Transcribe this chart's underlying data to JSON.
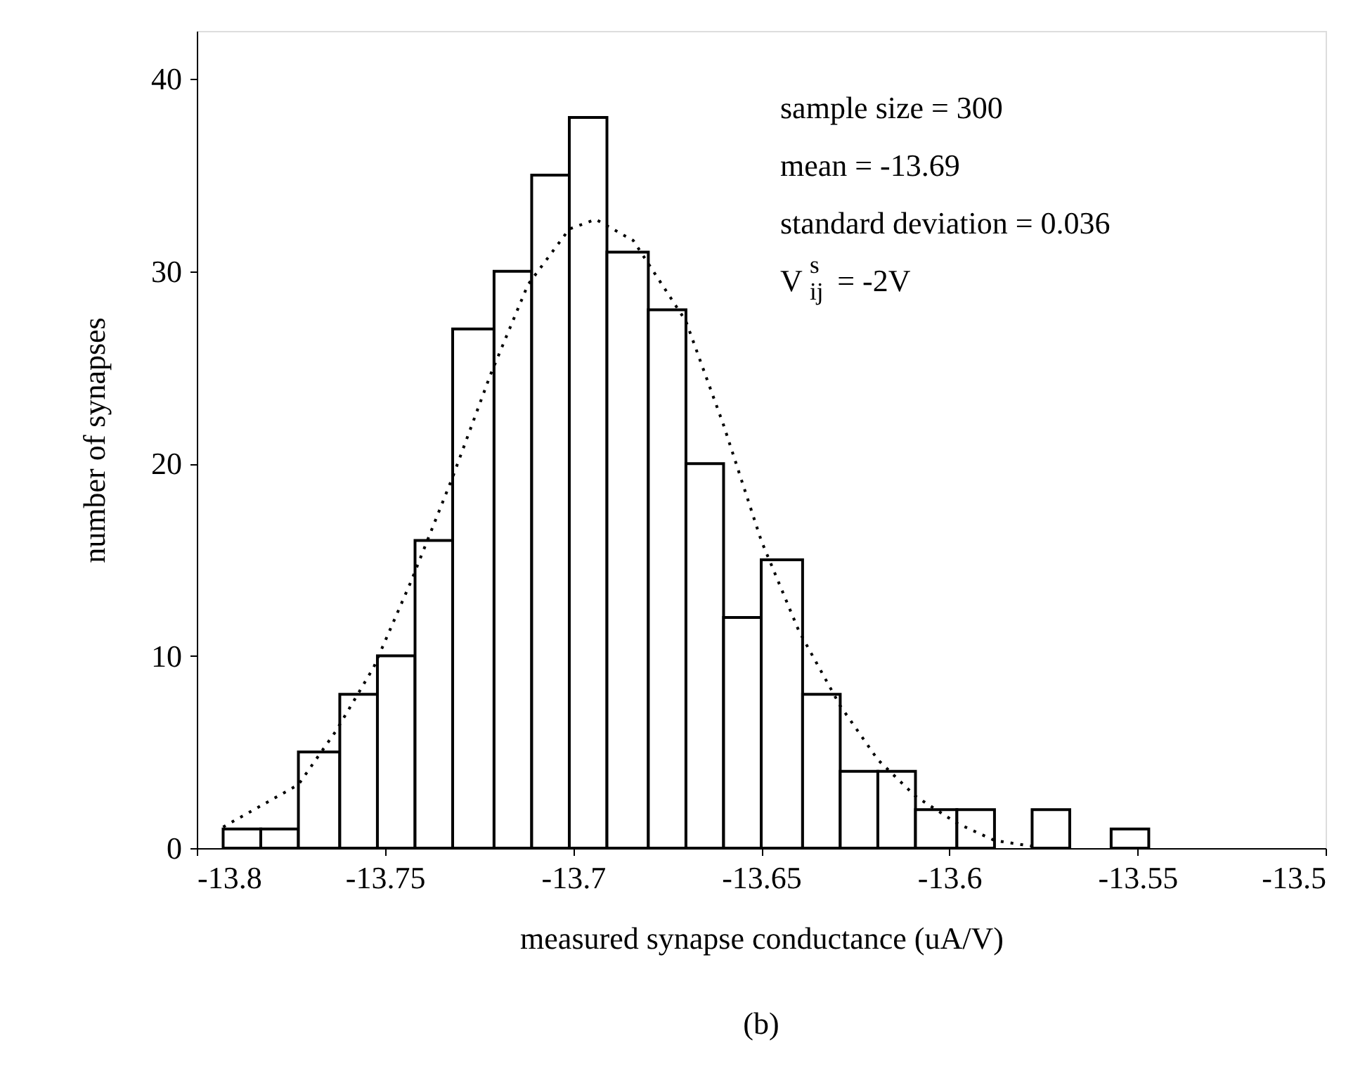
{
  "chart_data": {
    "type": "histogram",
    "xlabel": "measured synapse conductance (uA/V)",
    "ylabel": "number of synapses",
    "bins": [
      -13.793,
      -13.783,
      -13.773,
      -13.762,
      -13.752,
      -13.742,
      -13.732,
      -13.721,
      -13.711,
      -13.701,
      -13.691,
      -13.68,
      -13.67,
      -13.66,
      -13.65,
      -13.639,
      -13.629,
      -13.619,
      -13.609,
      -13.598,
      -13.588,
      -13.578,
      -13.568,
      -13.557,
      -13.547
    ],
    "values": [
      1,
      1,
      5,
      8,
      10,
      16,
      27,
      30,
      35,
      38,
      31,
      28,
      20,
      12,
      15,
      8,
      4,
      4,
      2,
      2,
      0,
      2,
      0,
      1
    ],
    "color": "#ffffff",
    "series": [
      {
        "type": "line",
        "line_style": "dotted",
        "color": "#000000",
        "x": [
          -13.793,
          -13.773,
          -13.763,
          -13.753,
          -13.743,
          -13.732,
          -13.722,
          -13.712,
          -13.701,
          -13.694,
          -13.684,
          -13.67,
          -13.66,
          -13.65,
          -13.64,
          -13.629,
          -13.619,
          -13.609,
          -13.598,
          -13.588,
          -13.578
        ],
        "values": [
          1.1,
          3.3,
          6.1,
          9.4,
          13.9,
          19.3,
          24.6,
          29.3,
          32.2,
          32.7,
          31.6,
          27.4,
          22.0,
          16.0,
          11.3,
          7.4,
          4.6,
          2.7,
          1.3,
          0.4,
          0.1
        ]
      }
    ],
    "xlim": [
      -13.8,
      -13.5
    ],
    "xticks": [
      -13.8,
      -13.75,
      -13.7,
      -13.65,
      -13.6,
      -13.55,
      -13.5
    ],
    "ylim": [
      0,
      42.5
    ],
    "yticks": [
      0,
      10,
      20,
      30,
      40
    ],
    "grid": false,
    "annotations": [
      "sample size = 300",
      "mean = -13.69",
      "standard deviation = 0.036",
      "V$^{s}$$_{ij}$ = -2V",
      "(b)"
    ]
  }
}
